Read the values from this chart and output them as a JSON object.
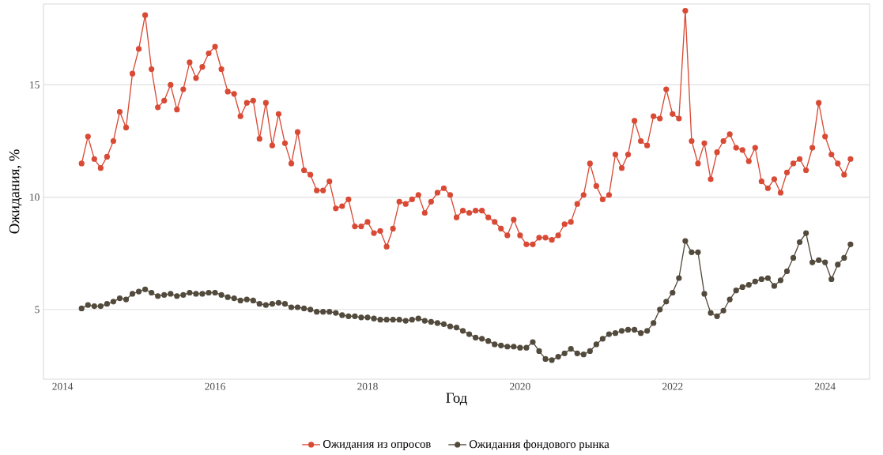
{
  "chart_data": {
    "type": "line",
    "xlabel": "Год",
    "ylabel": "Ожидания, %",
    "x": [
      "2014-04",
      "2014-05",
      "2014-06",
      "2014-07",
      "2014-08",
      "2014-09",
      "2014-10",
      "2014-11",
      "2014-12",
      "2015-01",
      "2015-02",
      "2015-03",
      "2015-04",
      "2015-05",
      "2015-06",
      "2015-07",
      "2015-08",
      "2015-09",
      "2015-10",
      "2015-11",
      "2015-12",
      "2016-01",
      "2016-02",
      "2016-03",
      "2016-04",
      "2016-05",
      "2016-06",
      "2016-07",
      "2016-08",
      "2016-09",
      "2016-10",
      "2016-11",
      "2016-12",
      "2017-01",
      "2017-02",
      "2017-03",
      "2017-04",
      "2017-05",
      "2017-06",
      "2017-07",
      "2017-08",
      "2017-09",
      "2017-10",
      "2017-11",
      "2017-12",
      "2018-01",
      "2018-02",
      "2018-03",
      "2018-04",
      "2018-05",
      "2018-06",
      "2018-07",
      "2018-08",
      "2018-09",
      "2018-10",
      "2018-11",
      "2018-12",
      "2019-01",
      "2019-02",
      "2019-03",
      "2019-04",
      "2019-05",
      "2019-06",
      "2019-07",
      "2019-08",
      "2019-09",
      "2019-10",
      "2019-11",
      "2019-12",
      "2020-01",
      "2020-02",
      "2020-03",
      "2020-04",
      "2020-05",
      "2020-06",
      "2020-07",
      "2020-08",
      "2020-09",
      "2020-10",
      "2020-11",
      "2020-12",
      "2021-01",
      "2021-02",
      "2021-03",
      "2021-04",
      "2021-05",
      "2021-06",
      "2021-07",
      "2021-08",
      "2021-09",
      "2021-10",
      "2021-11",
      "2021-12",
      "2022-01",
      "2022-02",
      "2022-03",
      "2022-04",
      "2022-05",
      "2022-06",
      "2022-07",
      "2022-08",
      "2022-09",
      "2022-10",
      "2022-11",
      "2022-12",
      "2023-01",
      "2023-02",
      "2023-03",
      "2023-04",
      "2023-05",
      "2023-06",
      "2023-07",
      "2023-08",
      "2023-09",
      "2023-10",
      "2023-11",
      "2023-12",
      "2024-01",
      "2024-02",
      "2024-03",
      "2024-04",
      "2024-05"
    ],
    "series": [
      {
        "name": "Ожидания из опросов",
        "color": "#d94a35",
        "values": [
          11.5,
          12.7,
          11.7,
          11.3,
          11.8,
          12.5,
          13.8,
          13.1,
          15.5,
          16.6,
          18.1,
          15.7,
          14.0,
          14.3,
          15.0,
          13.9,
          14.8,
          16.0,
          15.3,
          15.8,
          16.4,
          16.7,
          15.7,
          14.7,
          14.6,
          13.6,
          14.2,
          14.3,
          12.6,
          14.2,
          12.3,
          13.7,
          12.4,
          11.5,
          12.9,
          11.2,
          11.0,
          10.3,
          10.3,
          10.7,
          9.5,
          9.6,
          9.9,
          8.7,
          8.7,
          8.9,
          8.4,
          8.5,
          7.8,
          8.6,
          9.8,
          9.7,
          9.9,
          10.1,
          9.3,
          9.8,
          10.2,
          10.4,
          10.1,
          9.1,
          9.4,
          9.3,
          9.4,
          9.4,
          9.1,
          8.9,
          8.6,
          8.3,
          9.0,
          8.3,
          7.9,
          7.9,
          8.2,
          8.2,
          8.1,
          8.3,
          8.8,
          8.9,
          9.7,
          10.1,
          11.5,
          10.5,
          9.9,
          10.1,
          11.9,
          11.3,
          11.9,
          13.4,
          12.5,
          12.3,
          13.6,
          13.5,
          14.8,
          13.7,
          13.5,
          18.3,
          12.5,
          11.5,
          12.4,
          10.8,
          12.0,
          12.5,
          12.8,
          12.2,
          12.1,
          11.6,
          12.2,
          10.7,
          10.4,
          10.8,
          10.2,
          11.1,
          11.5,
          11.7,
          11.2,
          12.2,
          14.2,
          12.7,
          11.9,
          11.5,
          11.0,
          11.7
        ]
      },
      {
        "name": "Ожидания фондового рынка",
        "color": "#524a3c",
        "values": [
          5.05,
          5.2,
          5.15,
          5.15,
          5.25,
          5.35,
          5.5,
          5.45,
          5.7,
          5.8,
          5.9,
          5.75,
          5.6,
          5.65,
          5.7,
          5.6,
          5.65,
          5.75,
          5.7,
          5.7,
          5.75,
          5.75,
          5.65,
          5.55,
          5.5,
          5.4,
          5.45,
          5.4,
          5.25,
          5.2,
          5.25,
          5.3,
          5.25,
          5.1,
          5.1,
          5.05,
          5.0,
          4.9,
          4.9,
          4.9,
          4.85,
          4.75,
          4.7,
          4.7,
          4.65,
          4.65,
          4.6,
          4.55,
          4.55,
          4.55,
          4.55,
          4.5,
          4.55,
          4.6,
          4.5,
          4.45,
          4.4,
          4.35,
          4.25,
          4.2,
          4.05,
          3.9,
          3.75,
          3.7,
          3.6,
          3.45,
          3.4,
          3.35,
          3.35,
          3.3,
          3.3,
          3.55,
          3.15,
          2.8,
          2.75,
          2.9,
          3.05,
          3.25,
          3.05,
          3.0,
          3.15,
          3.45,
          3.7,
          3.9,
          3.95,
          4.05,
          4.1,
          4.1,
          3.95,
          4.05,
          4.4,
          5.0,
          5.35,
          5.75,
          6.4,
          8.05,
          7.55,
          7.55,
          5.7,
          4.85,
          4.7,
          4.95,
          5.45,
          5.85,
          6.0,
          6.1,
          6.25,
          6.35,
          6.4,
          6.05,
          6.3,
          6.7,
          7.3,
          8.0,
          8.4,
          7.1,
          7.2,
          7.1,
          6.35,
          7.0,
          7.3,
          7.9
        ]
      }
    ],
    "xlim": [
      "2013-10",
      "2024-08"
    ],
    "xticks": [
      "2014",
      "2016",
      "2018",
      "2020",
      "2022",
      "2024"
    ],
    "ylim": [
      1.9,
      18.6
    ],
    "yticks": [
      5,
      10,
      15
    ],
    "grid": "y",
    "legend": "bottom",
    "marker": "circle",
    "line_style": "solid"
  }
}
